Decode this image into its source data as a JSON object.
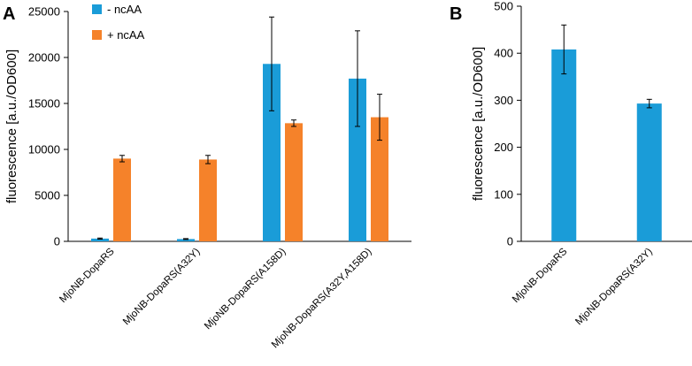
{
  "chart_data": [
    {
      "panel": "A",
      "type": "bar",
      "title": "",
      "xlabel": "",
      "ylabel": "fluorescence [a.u./OD600]",
      "ylim": [
        0,
        25000
      ],
      "yticks": [
        0,
        5000,
        10000,
        15000,
        20000,
        25000
      ],
      "categories": [
        "MjoNB-DopaRS",
        "MjoNB-DopaRS(A32Y)",
        "MjoNB-DopaRS(A158D)",
        "MjoNB-DopaRS(A32Y,A158D)"
      ],
      "legend_position": "top-left",
      "series": [
        {
          "name": "- ncAA",
          "color": "#1a9cd8",
          "values": [
            300,
            250,
            19300,
            17700
          ],
          "errors": [
            60,
            50,
            5100,
            5200
          ]
        },
        {
          "name": "+ ncAA",
          "color": "#f5822a",
          "values": [
            9000,
            8900,
            12850,
            13500
          ],
          "errors": [
            350,
            450,
            350,
            2500
          ]
        }
      ]
    },
    {
      "panel": "B",
      "type": "bar",
      "title": "",
      "xlabel": "",
      "ylabel": "fluorescence [a.u./OD600]",
      "ylim": [
        0,
        500
      ],
      "yticks": [
        0,
        100,
        200,
        300,
        400,
        500
      ],
      "categories": [
        "MjoNB-DopaRS",
        "MjoNB-DopaRS(A32Y)"
      ],
      "series": [
        {
          "name": "",
          "color": "#1a9cd8",
          "values": [
            408,
            293
          ],
          "errors": [
            52,
            9
          ]
        }
      ]
    }
  ]
}
